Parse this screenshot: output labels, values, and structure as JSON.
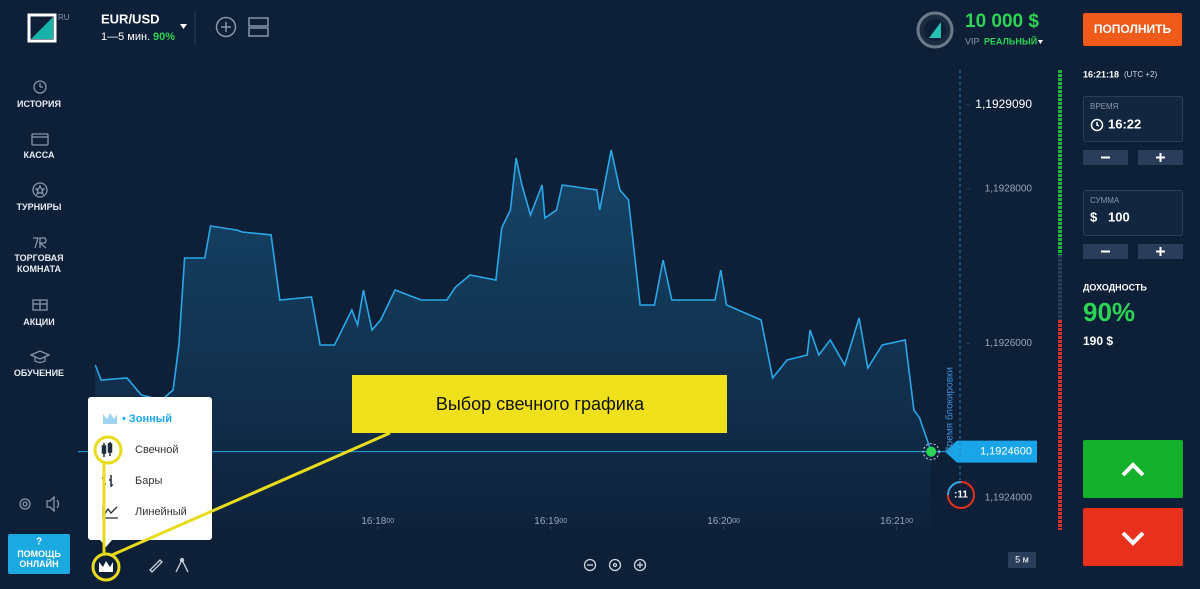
{
  "header": {
    "logo_badge": "RU",
    "pair": "EUR/USD",
    "period": "1—5 мин.",
    "payout": "90%",
    "balance": "10 000 $",
    "account_vip": "VIP",
    "account_type": "РЕАЛЬНЫЙ",
    "deposit_button": "ПОПОЛНИТЬ"
  },
  "sidebar": {
    "items": [
      "ИСТОРИЯ",
      "КАССА",
      "ТУРНИРЫ",
      "ТОРГОВАЯ КОМНАТА",
      "АКЦИИ",
      "ОБУЧЕНИЕ"
    ],
    "help_icon": "?",
    "help": "ПОМОЩЬ ОНЛАЙН"
  },
  "chart_data": {
    "type": "line",
    "color": "#2aa8e6",
    "x": [
      "16:16:22",
      "16:16:24",
      "16:16:33",
      "16:16:38",
      "16:16:45",
      "16:16:49",
      "16:16:51",
      "16:16:53",
      "16:17:00",
      "16:17:02",
      "16:17:11",
      "16:17:13",
      "16:17:23",
      "16:17:26",
      "16:17:37",
      "16:17:40",
      "16:17:45",
      "16:17:51",
      "16:17:53",
      "16:17:55",
      "16:17:58",
      "16:18:01",
      "16:18:06",
      "16:18:15",
      "16:18:24",
      "16:18:27",
      "16:18:32",
      "16:18:41",
      "16:18:43",
      "16:18:46",
      "16:18:48",
      "16:18:50",
      "16:18:53",
      "16:18:57",
      "16:18:58",
      "16:19:02",
      "16:19:04",
      "16:19:16",
      "16:19:17",
      "16:19:21",
      "16:19:24",
      "16:19:27",
      "16:19:31",
      "16:19:36",
      "16:19:39",
      "16:19:42",
      "16:19:57",
      "16:19:59",
      "16:20:01",
      "16:20:13",
      "16:20:17",
      "16:20:22",
      "16:20:29",
      "16:20:30",
      "16:20:33",
      "16:20:37",
      "16:20:42",
      "16:20:47",
      "16:20:50",
      "16:20:55",
      "16:21:03",
      "16:21:06",
      "16:21:08",
      "16:21:12"
    ],
    "values": [
      1.1925722,
      1.1925527,
      1.1925553,
      1.1925333,
      1.1925269,
      1.1925398,
      1.1925981,
      1.1927107,
      1.1927107,
      1.1927521,
      1.1927469,
      1.1927443,
      1.1927405,
      1.1926563,
      1.1926602,
      1.1925981,
      1.1925981,
      1.1926434,
      1.1926239,
      1.1926693,
      1.1926175,
      1.1926304,
      1.1926693,
      1.1926563,
      1.1926563,
      1.1926731,
      1.1926887,
      1.1926822,
      1.1927495,
      1.1927728,
      1.1928401,
      1.1928052,
      1.1927663,
      1.1928052,
      1.1927625,
      1.1927728,
      1.1928052,
      1.1927987,
      1.1927728,
      1.1928505,
      1.1927987,
      1.1927858,
      1.1926498,
      1.1926498,
      1.1927081,
      1.1926563,
      1.1926563,
      1.1926951,
      1.1926498,
      1.1926304,
      1.1925553,
      1.1925786,
      1.1925851,
      1.1926175,
      1.1925851,
      1.1926045,
      1.1925722,
      1.192633,
      1.1925683,
      1.1925981,
      1.1926045,
      1.1925139,
      1.1925036,
      1.19246
    ],
    "xlim": [
      "16:16:16",
      "16:21:22"
    ],
    "xticks": [
      {
        "value": "16:18:00",
        "label": "16:18",
        "seconds": "00"
      },
      {
        "value": "16:19:00",
        "label": "16:19",
        "seconds": "00"
      },
      {
        "value": "16:20:00",
        "label": "16:20",
        "seconds": "00"
      },
      {
        "value": "16:21:00",
        "label": "16:21",
        "seconds": "00"
      }
    ],
    "ylim": [
      1.1923586,
      1.192954
    ],
    "yticks": [
      {
        "value": 1.192909,
        "label": "1,1929090"
      },
      {
        "value": 1.1928,
        "label": "1,1928000"
      },
      {
        "value": 1.1926,
        "label": "1,1926000"
      },
      {
        "value": 1.1924,
        "label": "1,1924000"
      }
    ],
    "current_price": {
      "value": 1.19246,
      "label": "1,1924600"
    },
    "lock_label": "Время блокировки",
    "timer": ":11",
    "timeframe": "5 м"
  },
  "chart_menu": {
    "items": [
      "• Зонный",
      "Свечной",
      "Бары",
      "Линейный"
    ]
  },
  "callout": "Выбор свечного графика",
  "panel": {
    "clock": "16:21:18",
    "timezone": "(UTC +2)",
    "time_label": "ВРЕМЯ",
    "time_value": "16:22",
    "amount_label": "СУММА",
    "currency": "$",
    "amount_value": "100",
    "profit_label": "ДОХОДНОСТЬ",
    "profit_pct": "90%",
    "profit_amount": "190 $"
  }
}
